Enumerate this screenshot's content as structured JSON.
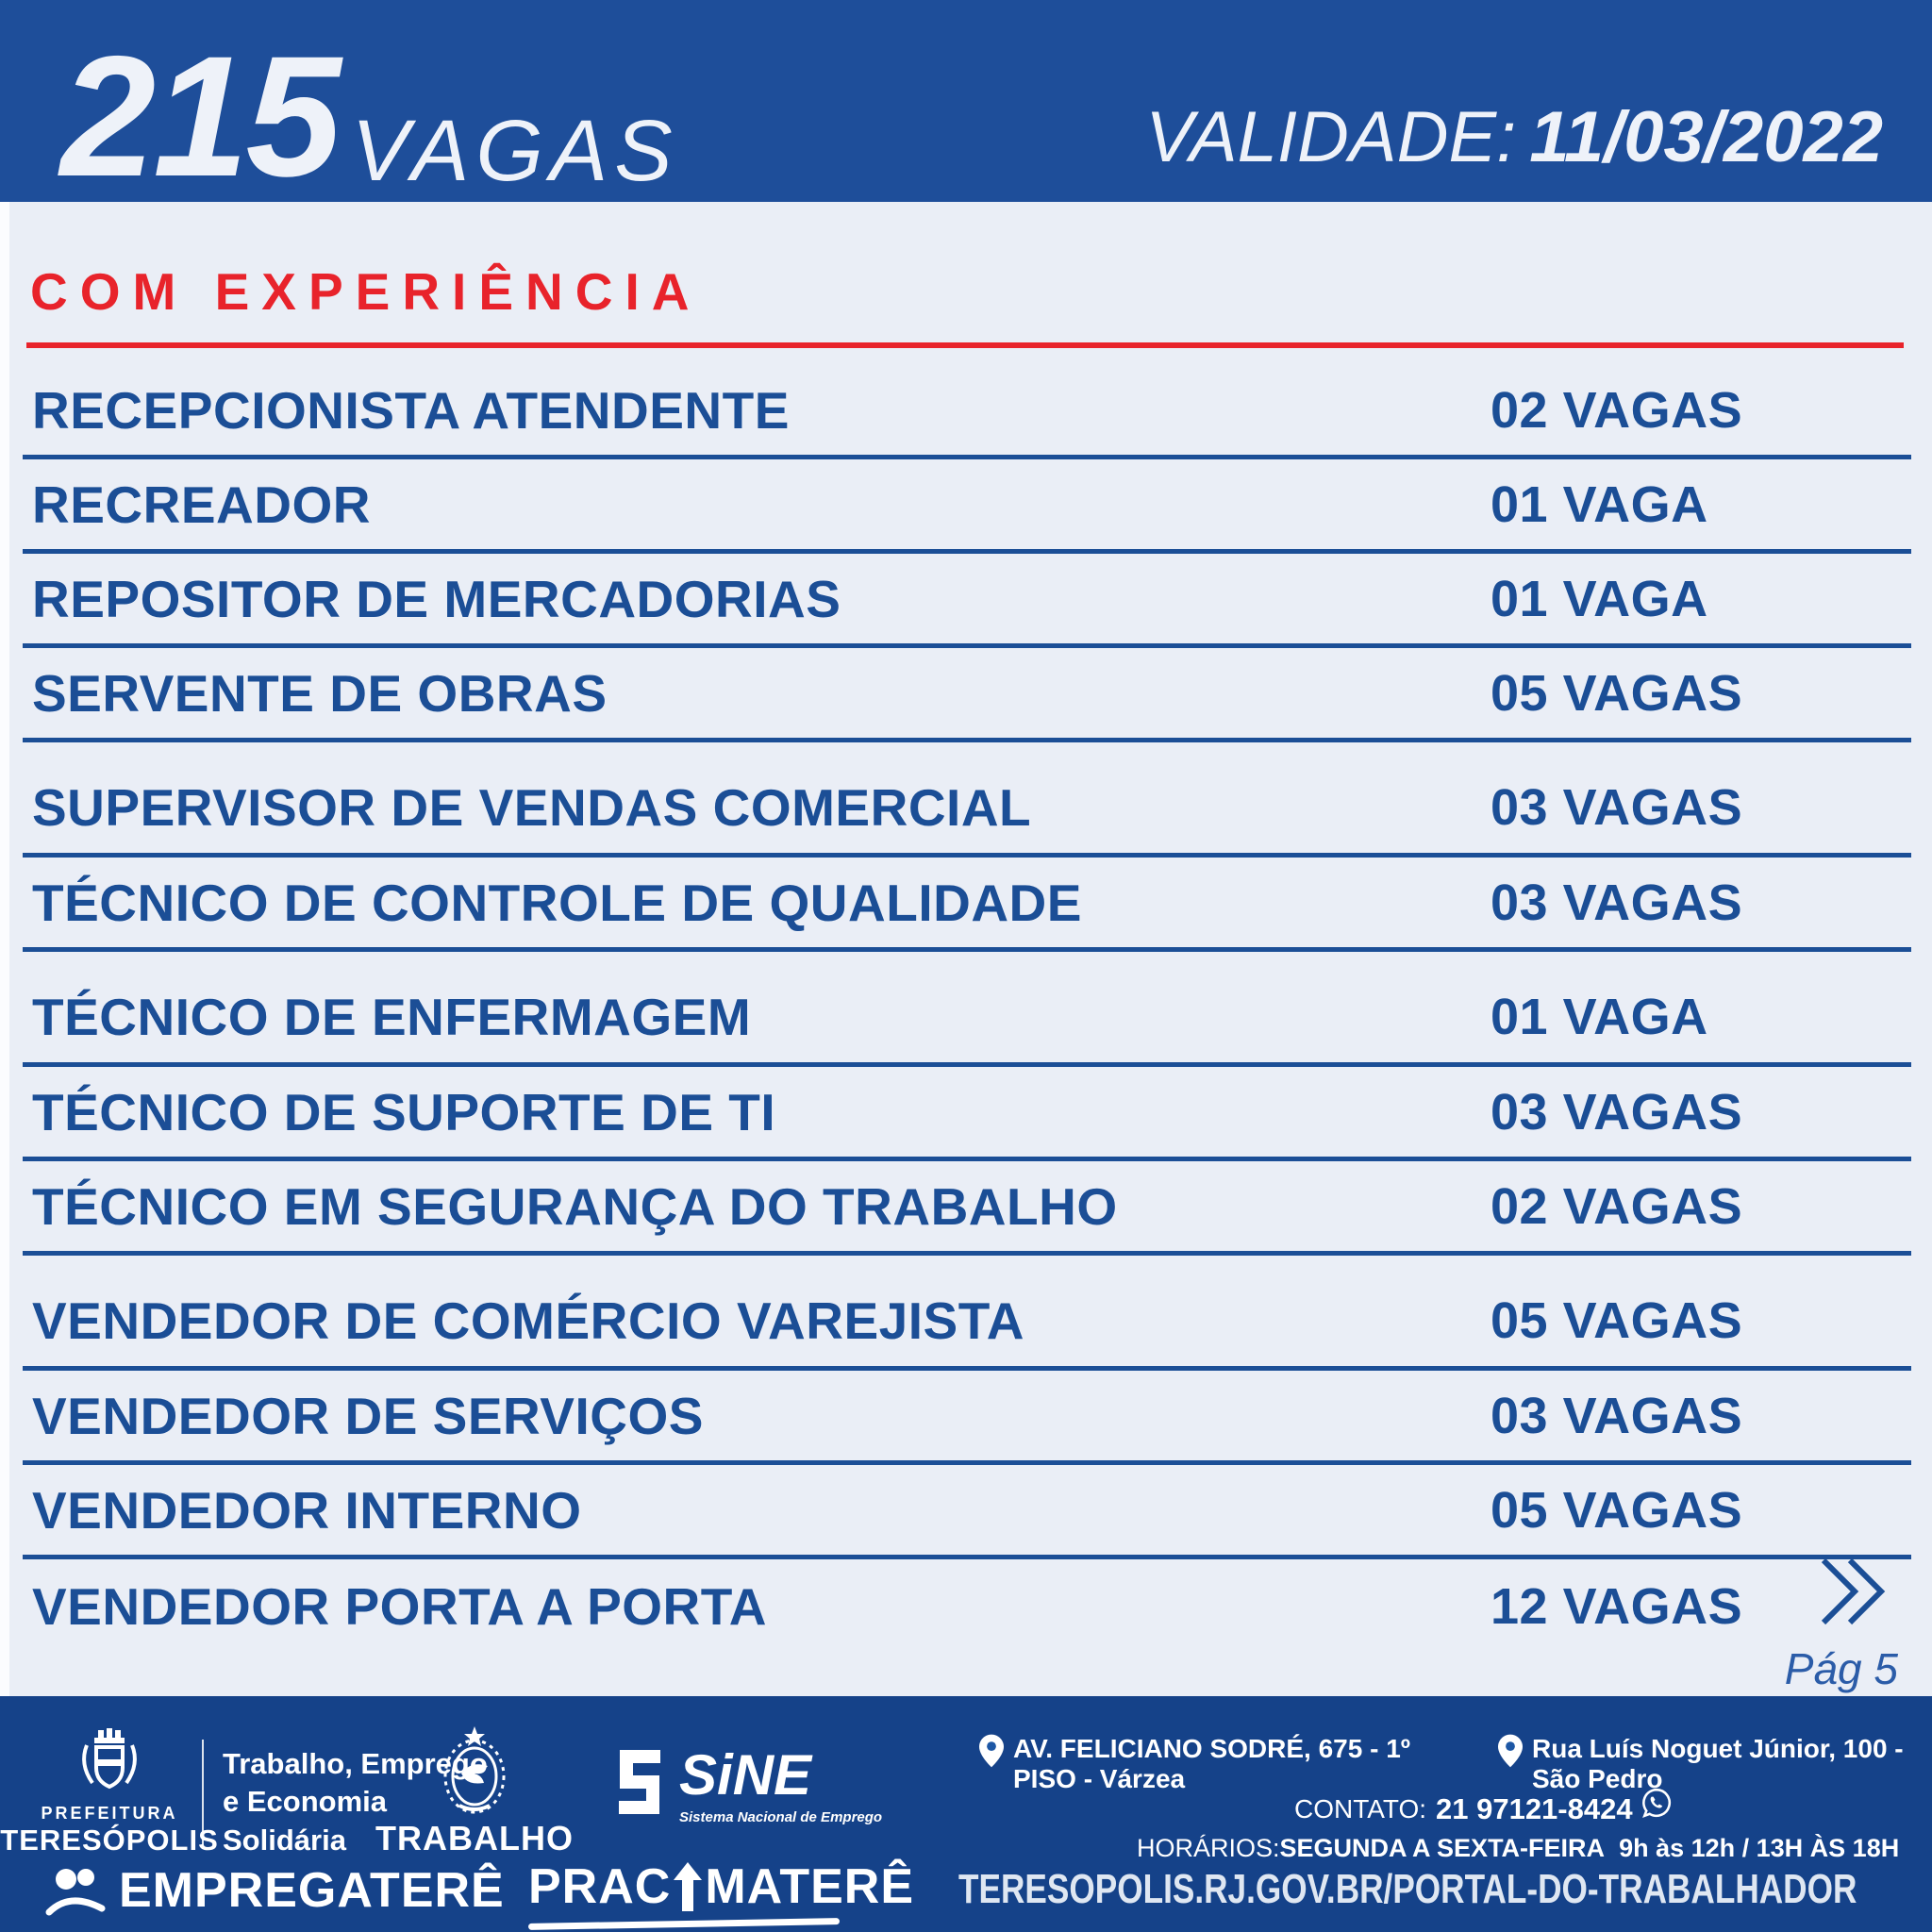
{
  "colors": {
    "header_bg": "#1e4e9a",
    "body_bg": "#eaeef6",
    "accent_red": "#e8232b",
    "navy_text": "#1b4e96",
    "footer_bg": "#154289",
    "footer_panel": "#1d57a5"
  },
  "header": {
    "vacancy_count": "215",
    "vacancy_label": "VAGAS",
    "validity_label": "VALIDADE:",
    "validity_date": "11/03/2022"
  },
  "section": {
    "title": "COM EXPERIÊNCIA"
  },
  "jobs": [
    {
      "title": "RECEPCIONISTA ATENDENTE",
      "count": "02 VAGAS",
      "group_break": false
    },
    {
      "title": "RECREADOR",
      "count": "01 VAGA",
      "group_break": false
    },
    {
      "title": "REPOSITOR DE MERCADORIAS",
      "count": "01 VAGA",
      "group_break": false
    },
    {
      "title": "SERVENTE DE OBRAS",
      "count": "05 VAGAS",
      "group_break": false
    },
    {
      "title": "SUPERVISOR DE VENDAS COMERCIAL",
      "count": "03 VAGAS",
      "group_break": true
    },
    {
      "title": "TÉCNICO DE CONTROLE DE QUALIDADE",
      "count": "03 VAGAS",
      "group_break": false
    },
    {
      "title": "TÉCNICO DE ENFERMAGEM",
      "count": "01 VAGA",
      "group_break": true
    },
    {
      "title": "TÉCNICO DE SUPORTE DE TI",
      "count": "03 VAGAS",
      "group_break": false
    },
    {
      "title": "TÉCNICO EM SEGURANÇA DO TRABALHO",
      "count": "02 VAGAS",
      "group_break": false
    },
    {
      "title": "VENDEDOR DE COMÉRCIO VAREJISTA",
      "count": "05 VAGAS",
      "group_break": true
    },
    {
      "title": "VENDEDOR DE SERVIÇOS",
      "count": "03 VAGAS",
      "group_break": false
    },
    {
      "title": "VENDEDOR INTERNO",
      "count": "05 VAGAS",
      "group_break": false
    },
    {
      "title": "VENDEDOR PORTA A PORTA",
      "count": "12 VAGAS",
      "group_break": false
    }
  ],
  "pagination": {
    "page_label": "Pág 5"
  },
  "footer": {
    "prefeitura_line1": "PREFEITURA",
    "prefeitura_line2": "TERESÓPOLIS",
    "dept_lines": [
      "Trabalho, Emprego",
      "e Economia",
      "Solidária"
    ],
    "trabalho_label": "TRABALHO",
    "sine_name": "SiNE",
    "sine_tagline": "Sistema Nacional de Emprego",
    "empregatere": "EMPREGATERÊ",
    "pracimatere_pre": "PRAC",
    "pracimatere_post": "MATERÊ",
    "address1": "AV. FELICIANO SODRÉ, 675 - 1º PISO - Várzea",
    "address2": "Rua Luís Noguet Júnior, 100 - São Pedro",
    "contact_label": "CONTATO:",
    "contact_number": "21 97121-8424",
    "hours_label": "HORÁRIOS:",
    "hours_days": "SEGUNDA A SEXTA-FEIRA",
    "hours_time": "9h às 12h / 13H ÀS 18H",
    "website": "TERESOPOLIS.RJ.GOV.BR/PORTAL-DO-TRABALHADOR"
  }
}
